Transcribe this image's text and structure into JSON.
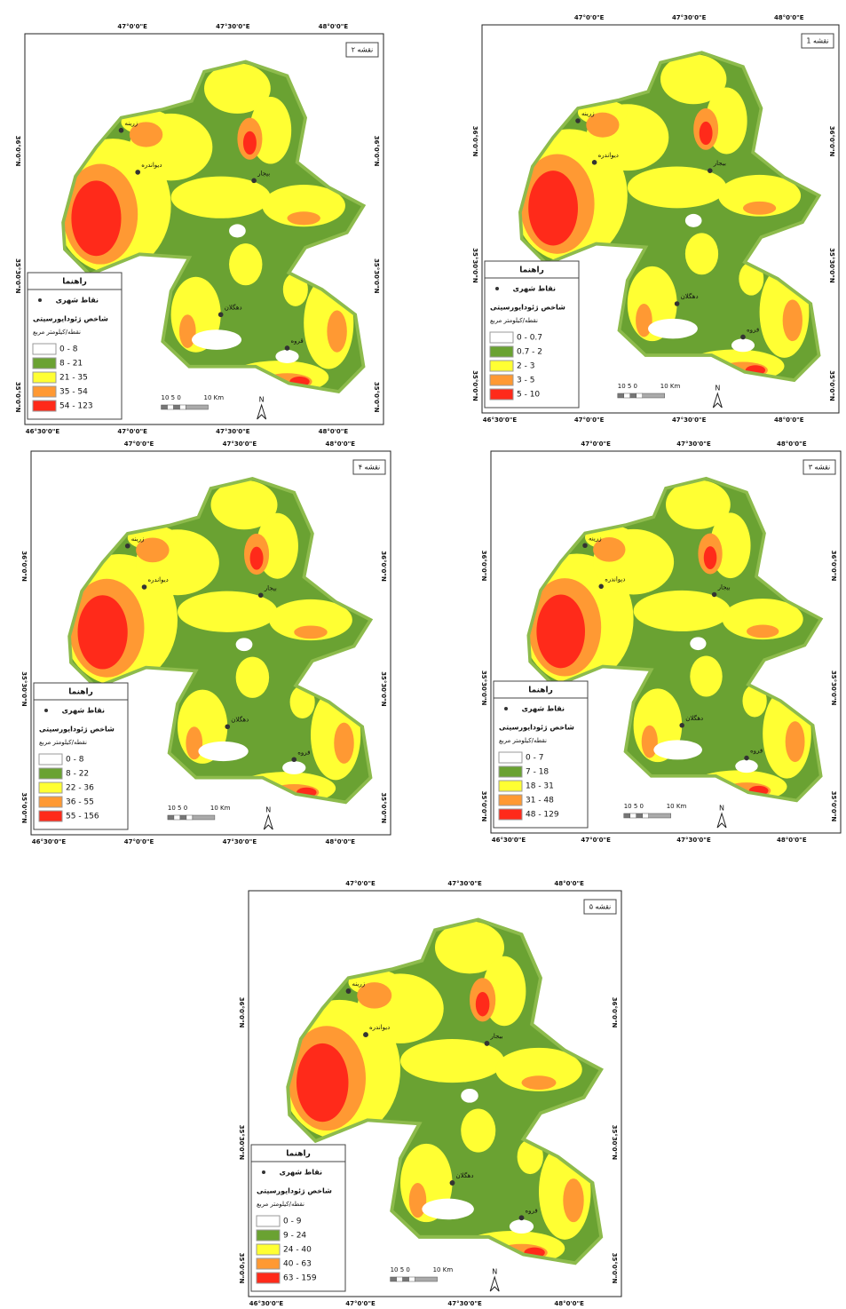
{
  "graticule": {
    "top": [
      "47°0'0\"E",
      "47°30'0\"E",
      "48°0'0\"E"
    ],
    "bottom": [
      "46°30'0\"E",
      "47°0'0\"E",
      "47°30'0\"E",
      "48°0'0\"E"
    ],
    "side": [
      "36°0'0\"N",
      "35°30'0\"N",
      "35°0'0\"N"
    ]
  },
  "legend": {
    "title": "راهنما",
    "points": "نقاط شهری",
    "index": "شاخص ژئودایورسیتی",
    "unit": "نقطه/کیلومتر مربع",
    "colors": [
      "#ffffff",
      "#6aa232",
      "#ffff33",
      "#ff9933",
      "#ff2a1a"
    ]
  },
  "scale": {
    "numbers": "10 5 0",
    "end": "10 Km",
    "north": "N"
  },
  "cities": [
    "زرینه",
    "دیواندره",
    "بیجار",
    "دهگلان",
    "قروه"
  ],
  "maps": [
    {
      "title": "نقشه ۲",
      "classes": [
        "0 - 8",
        "8 - 21",
        "21 - 35",
        "35 - 54",
        "54 - 123"
      ]
    },
    {
      "title": "نقشه 1",
      "classes": [
        "0 - 0.7",
        "0.7 - 2",
        "2 - 3",
        "3 - 5",
        "5 - 10"
      ]
    },
    {
      "title": "نقشه ۴",
      "classes": [
        "0 - 8",
        "8 - 22",
        "22 - 36",
        "36 - 55",
        "55 - 156"
      ]
    },
    {
      "title": "نقشه ۳",
      "classes": [
        "0 - 7",
        "7 - 18",
        "18 - 31",
        "31 - 48",
        "48 - 129"
      ]
    },
    {
      "title": "نقشه ۵",
      "classes": [
        "0 - 9",
        "9 - 24",
        "24 - 40",
        "40 - 63",
        "63 - 159"
      ]
    }
  ]
}
